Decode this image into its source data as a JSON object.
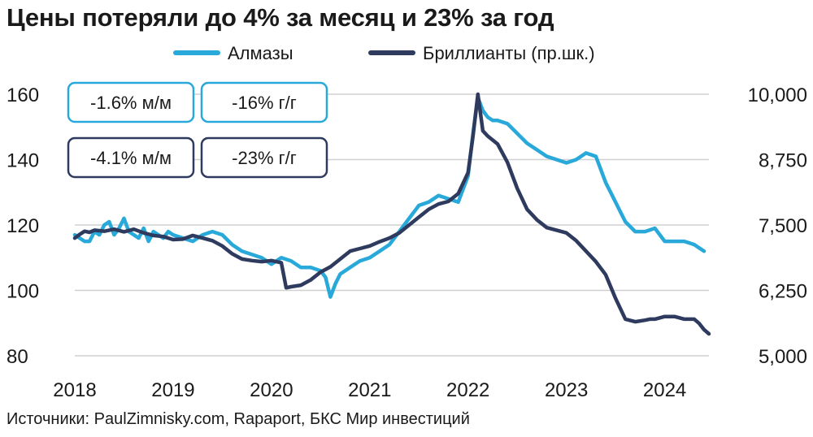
{
  "title": "Цены потеряли до 4% за месяц и 23% за год",
  "source": "Источники: PaulZimnisky.com, Rapaport, БКС Мир инвестиций",
  "colors": {
    "almazy": "#29a9d9",
    "brillianty": "#2e3b5e",
    "grid": "#d0d0d0"
  },
  "badges": {
    "almazy_mm": "-1.6% м/м",
    "almazy_yy": "-16% г/г",
    "brillianty_mm": "-4.1% м/м",
    "brillianty_yy": "-23% г/г"
  },
  "chart_data": {
    "type": "line",
    "title": "Цены потеряли до 4% за месяц и 23% за год",
    "x_ticks": [
      "2018",
      "2019",
      "2020",
      "2021",
      "2022",
      "2023",
      "2024"
    ],
    "xlim": [
      2018.0,
      2024.45
    ],
    "y_left": {
      "ticks": [
        "160",
        "140",
        "120",
        "100",
        "80"
      ],
      "lim": [
        80,
        160
      ]
    },
    "y_right": {
      "ticks": [
        "10,000",
        "8,750",
        "7,500",
        "6,250",
        "5,000"
      ],
      "lim": [
        5000,
        10000
      ]
    },
    "grid": true,
    "legend_position": "top-center",
    "series": [
      {
        "name": "Алмазы",
        "axis": "left",
        "color": "#29a9d9",
        "x": [
          2018.0,
          2018.05,
          2018.1,
          2018.15,
          2018.2,
          2018.25,
          2018.3,
          2018.35,
          2018.4,
          2018.45,
          2018.5,
          2018.55,
          2018.6,
          2018.65,
          2018.7,
          2018.75,
          2018.8,
          2018.85,
          2018.9,
          2018.95,
          2019.0,
          2019.1,
          2019.2,
          2019.3,
          2019.4,
          2019.5,
          2019.6,
          2019.7,
          2019.8,
          2019.9,
          2020.0,
          2020.1,
          2020.2,
          2020.3,
          2020.4,
          2020.5,
          2020.55,
          2020.6,
          2020.65,
          2020.7,
          2020.8,
          2020.9,
          2021.0,
          2021.1,
          2021.2,
          2021.3,
          2021.4,
          2021.5,
          2021.6,
          2021.7,
          2021.8,
          2021.9,
          2022.0,
          2022.05,
          2022.1,
          2022.15,
          2022.2,
          2022.25,
          2022.3,
          2022.4,
          2022.5,
          2022.6,
          2022.7,
          2022.8,
          2022.9,
          2023.0,
          2023.1,
          2023.2,
          2023.3,
          2023.4,
          2023.5,
          2023.6,
          2023.7,
          2023.8,
          2023.9,
          2024.0,
          2024.1,
          2024.2,
          2024.3,
          2024.4
        ],
        "values": [
          117,
          116,
          115,
          115,
          118,
          117,
          120,
          121,
          117,
          119,
          122,
          118,
          117,
          116,
          119,
          115,
          118,
          117,
          116,
          118,
          117,
          116,
          115,
          117,
          118,
          117,
          114,
          112,
          111,
          110,
          108,
          110,
          109,
          107,
          107,
          106,
          104,
          98,
          102,
          105,
          107,
          109,
          110,
          112,
          114,
          118,
          122,
          126,
          127,
          129,
          128,
          127,
          135,
          148,
          159,
          155,
          153,
          152,
          152,
          151,
          148,
          145,
          143,
          141,
          140,
          139,
          140,
          142,
          141,
          133,
          127,
          121,
          118,
          118,
          119,
          115,
          115,
          115,
          114,
          112
        ]
      },
      {
        "name": "Бриллианты (пр.шк.)",
        "axis": "right",
        "color": "#2e3b5e",
        "x": [
          2018.0,
          2018.05,
          2018.1,
          2018.15,
          2018.2,
          2018.3,
          2018.4,
          2018.5,
          2018.6,
          2018.7,
          2018.8,
          2018.9,
          2019.0,
          2019.1,
          2019.2,
          2019.3,
          2019.4,
          2019.5,
          2019.6,
          2019.7,
          2019.8,
          2019.9,
          2020.0,
          2020.1,
          2020.15,
          2020.2,
          2020.3,
          2020.4,
          2020.5,
          2020.6,
          2020.7,
          2020.8,
          2020.9,
          2021.0,
          2021.1,
          2021.2,
          2021.3,
          2021.4,
          2021.5,
          2021.6,
          2021.7,
          2021.8,
          2021.9,
          2022.0,
          2022.05,
          2022.1,
          2022.15,
          2022.2,
          2022.3,
          2022.4,
          2022.5,
          2022.6,
          2022.7,
          2022.8,
          2022.9,
          2023.0,
          2023.1,
          2023.2,
          2023.3,
          2023.4,
          2023.5,
          2023.6,
          2023.7,
          2023.8,
          2023.85,
          2023.9,
          2024.0,
          2024.1,
          2024.2,
          2024.3,
          2024.35,
          2024.4,
          2024.45
        ],
        "values": [
          7250,
          7320,
          7380,
          7360,
          7400,
          7380,
          7420,
          7370,
          7420,
          7350,
          7300,
          7280,
          7220,
          7230,
          7300,
          7250,
          7200,
          7100,
          6950,
          6850,
          6820,
          6800,
          6820,
          6780,
          6300,
          6320,
          6350,
          6450,
          6600,
          6700,
          6850,
          7000,
          7050,
          7100,
          7180,
          7250,
          7350,
          7500,
          7650,
          7800,
          7900,
          7950,
          8100,
          8500,
          9200,
          10000,
          9300,
          9200,
          9050,
          8700,
          8200,
          7800,
          7600,
          7450,
          7400,
          7350,
          7200,
          7000,
          6800,
          6550,
          6100,
          5700,
          5650,
          5680,
          5700,
          5700,
          5750,
          5750,
          5700,
          5700,
          5620,
          5500,
          5420
        ]
      }
    ]
  }
}
